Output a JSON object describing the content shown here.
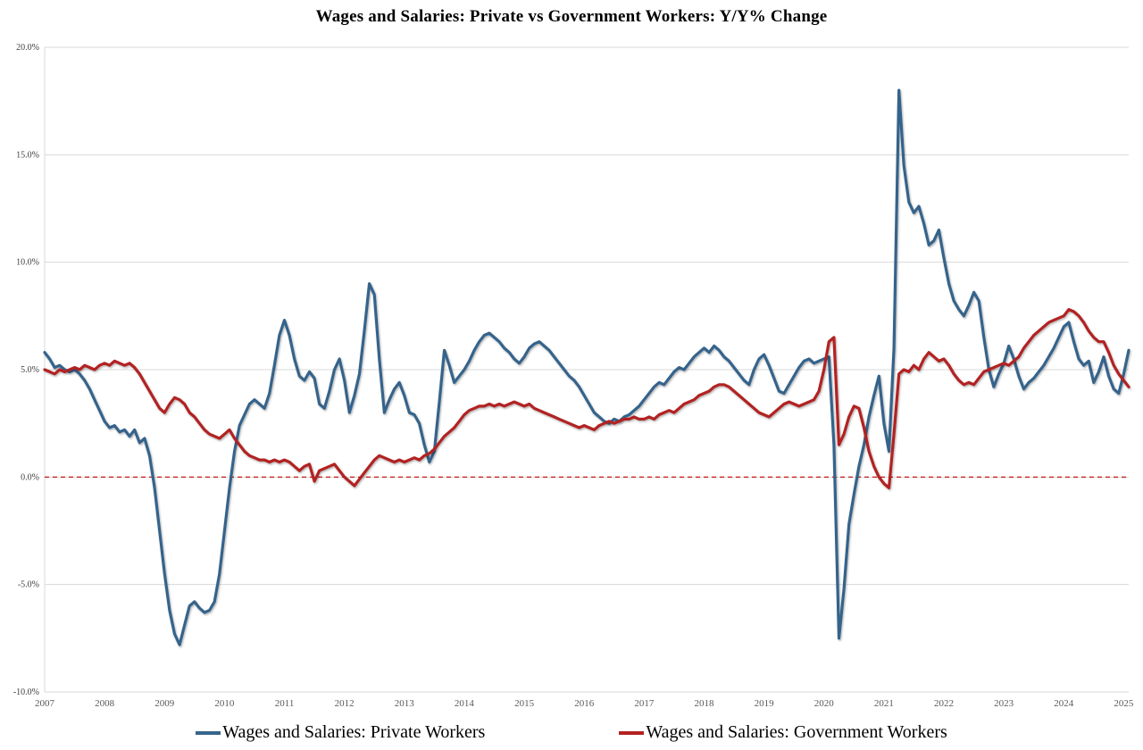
{
  "chart_data": {
    "type": "line",
    "title": "Wages and Salaries: Private vs Government Workers: Y/Y% Change",
    "x_unit": "month",
    "x_start": "2007-01",
    "x_end": "2025-02",
    "x_tick_labels": [
      "2007",
      "2008",
      "2009",
      "2010",
      "2011",
      "2012",
      "2013",
      "2014",
      "2015",
      "2016",
      "2017",
      "2018",
      "2019",
      "2020",
      "2021",
      "2022",
      "2023",
      "2024",
      "2025"
    ],
    "ylim": [
      -10,
      20
    ],
    "y_ticks": [
      -10,
      -5,
      0,
      5,
      10,
      15,
      20
    ],
    "y_tick_labels": [
      "-10.0%",
      "-5.0%",
      "0.0%",
      "5.0%",
      "10.0%",
      "15.0%",
      "20.0%"
    ],
    "grid": "horizontal-only",
    "gridline_color": "#D9D9D9",
    "background": "#FFFFFF",
    "zero_line": {
      "value": 0,
      "color": "#C00000",
      "style": "dashed"
    },
    "legend_position": "bottom",
    "series": [
      {
        "name": "Wages and Salaries: Private Workers",
        "color": "#36648B",
        "values": [
          5.8,
          5.5,
          5.1,
          5.2,
          5.0,
          4.9,
          5.0,
          4.8,
          4.5,
          4.1,
          3.6,
          3.1,
          2.6,
          2.3,
          2.4,
          2.1,
          2.2,
          1.9,
          2.2,
          1.6,
          1.8,
          1.0,
          -0.5,
          -2.5,
          -4.5,
          -6.2,
          -7.3,
          -7.8,
          -6.9,
          -6.0,
          -5.8,
          -6.1,
          -6.3,
          -6.2,
          -5.8,
          -4.5,
          -2.5,
          -0.5,
          1.2,
          2.4,
          2.9,
          3.4,
          3.6,
          3.4,
          3.2,
          3.9,
          5.2,
          6.6,
          7.3,
          6.6,
          5.5,
          4.7,
          4.5,
          4.9,
          4.6,
          3.4,
          3.2,
          4.0,
          5.0,
          5.5,
          4.5,
          3.0,
          3.8,
          4.8,
          6.8,
          9.0,
          8.5,
          5.5,
          3.0,
          3.6,
          4.1,
          4.4,
          3.8,
          3.0,
          2.9,
          2.5,
          1.5,
          0.7,
          1.2,
          3.5,
          5.9,
          5.2,
          4.4,
          4.7,
          5.0,
          5.4,
          5.9,
          6.3,
          6.6,
          6.7,
          6.5,
          6.3,
          6.0,
          5.8,
          5.5,
          5.3,
          5.6,
          6.0,
          6.2,
          6.3,
          6.1,
          5.9,
          5.6,
          5.3,
          5.0,
          4.7,
          4.5,
          4.2,
          3.8,
          3.4,
          3.0,
          2.8,
          2.6,
          2.5,
          2.7,
          2.6,
          2.8,
          2.9,
          3.1,
          3.3,
          3.6,
          3.9,
          4.2,
          4.4,
          4.3,
          4.6,
          4.9,
          5.1,
          5.0,
          5.3,
          5.6,
          5.8,
          6.0,
          5.8,
          6.1,
          5.9,
          5.6,
          5.4,
          5.1,
          4.8,
          4.5,
          4.3,
          5.0,
          5.5,
          5.7,
          5.2,
          4.6,
          4.0,
          3.9,
          4.3,
          4.7,
          5.1,
          5.4,
          5.5,
          5.3,
          5.4,
          5.5,
          5.6,
          1.5,
          -7.5,
          -5.2,
          -2.2,
          -0.8,
          0.5,
          1.5,
          2.8,
          3.8,
          4.7,
          2.5,
          1.2,
          6.0,
          18.0,
          14.5,
          12.8,
          12.3,
          12.6,
          11.8,
          10.8,
          11.0,
          11.5,
          10.2,
          9.0,
          8.2,
          7.8,
          7.5,
          8.0,
          8.6,
          8.2,
          6.5,
          5.0,
          4.2,
          4.8,
          5.3,
          6.1,
          5.5,
          4.7,
          4.1,
          4.4,
          4.6,
          4.9,
          5.2,
          5.6,
          6.0,
          6.5,
          7.0,
          7.2,
          6.3,
          5.5,
          5.2,
          5.4,
          4.4,
          4.9,
          5.6,
          4.7,
          4.1,
          3.9,
          4.8,
          5.9
        ]
      },
      {
        "name": "Wages and Salaries: Government Workers",
        "color": "#B22222",
        "values": [
          5.0,
          4.9,
          4.8,
          5.0,
          4.9,
          5.0,
          5.1,
          5.0,
          5.2,
          5.1,
          5.0,
          5.2,
          5.3,
          5.2,
          5.4,
          5.3,
          5.2,
          5.3,
          5.1,
          4.8,
          4.4,
          4.0,
          3.6,
          3.2,
          3.0,
          3.4,
          3.7,
          3.6,
          3.4,
          3.0,
          2.8,
          2.5,
          2.2,
          2.0,
          1.9,
          1.8,
          2.0,
          2.2,
          1.8,
          1.5,
          1.2,
          1.0,
          0.9,
          0.8,
          0.8,
          0.7,
          0.8,
          0.7,
          0.8,
          0.7,
          0.5,
          0.3,
          0.5,
          0.6,
          -0.2,
          0.3,
          0.4,
          0.5,
          0.6,
          0.3,
          0.0,
          -0.2,
          -0.4,
          -0.1,
          0.2,
          0.5,
          0.8,
          1.0,
          0.9,
          0.8,
          0.7,
          0.8,
          0.7,
          0.8,
          0.9,
          0.8,
          1.0,
          1.1,
          1.3,
          1.6,
          1.9,
          2.1,
          2.3,
          2.6,
          2.9,
          3.1,
          3.2,
          3.3,
          3.3,
          3.4,
          3.3,
          3.4,
          3.3,
          3.4,
          3.5,
          3.4,
          3.3,
          3.4,
          3.2,
          3.1,
          3.0,
          2.9,
          2.8,
          2.7,
          2.6,
          2.5,
          2.4,
          2.3,
          2.4,
          2.3,
          2.2,
          2.4,
          2.5,
          2.6,
          2.5,
          2.6,
          2.7,
          2.7,
          2.8,
          2.7,
          2.7,
          2.8,
          2.7,
          2.9,
          3.0,
          3.1,
          3.0,
          3.2,
          3.4,
          3.5,
          3.6,
          3.8,
          3.9,
          4.0,
          4.2,
          4.3,
          4.3,
          4.2,
          4.0,
          3.8,
          3.6,
          3.4,
          3.2,
          3.0,
          2.9,
          2.8,
          3.0,
          3.2,
          3.4,
          3.5,
          3.4,
          3.3,
          3.4,
          3.5,
          3.6,
          4.0,
          5.0,
          6.3,
          6.5,
          1.5,
          2.0,
          2.8,
          3.3,
          3.2,
          2.3,
          1.2,
          0.5,
          0.0,
          -0.3,
          -0.5,
          2.0,
          4.8,
          5.0,
          4.9,
          5.2,
          5.0,
          5.5,
          5.8,
          5.6,
          5.4,
          5.5,
          5.2,
          4.8,
          4.5,
          4.3,
          4.4,
          4.3,
          4.6,
          4.9,
          5.0,
          5.1,
          5.2,
          5.3,
          5.2,
          5.4,
          5.6,
          6.0,
          6.3,
          6.6,
          6.8,
          7.0,
          7.2,
          7.3,
          7.4,
          7.5,
          7.8,
          7.7,
          7.5,
          7.2,
          6.8,
          6.5,
          6.3,
          6.3,
          5.8,
          5.2,
          4.8,
          4.5,
          4.2
        ]
      }
    ]
  }
}
